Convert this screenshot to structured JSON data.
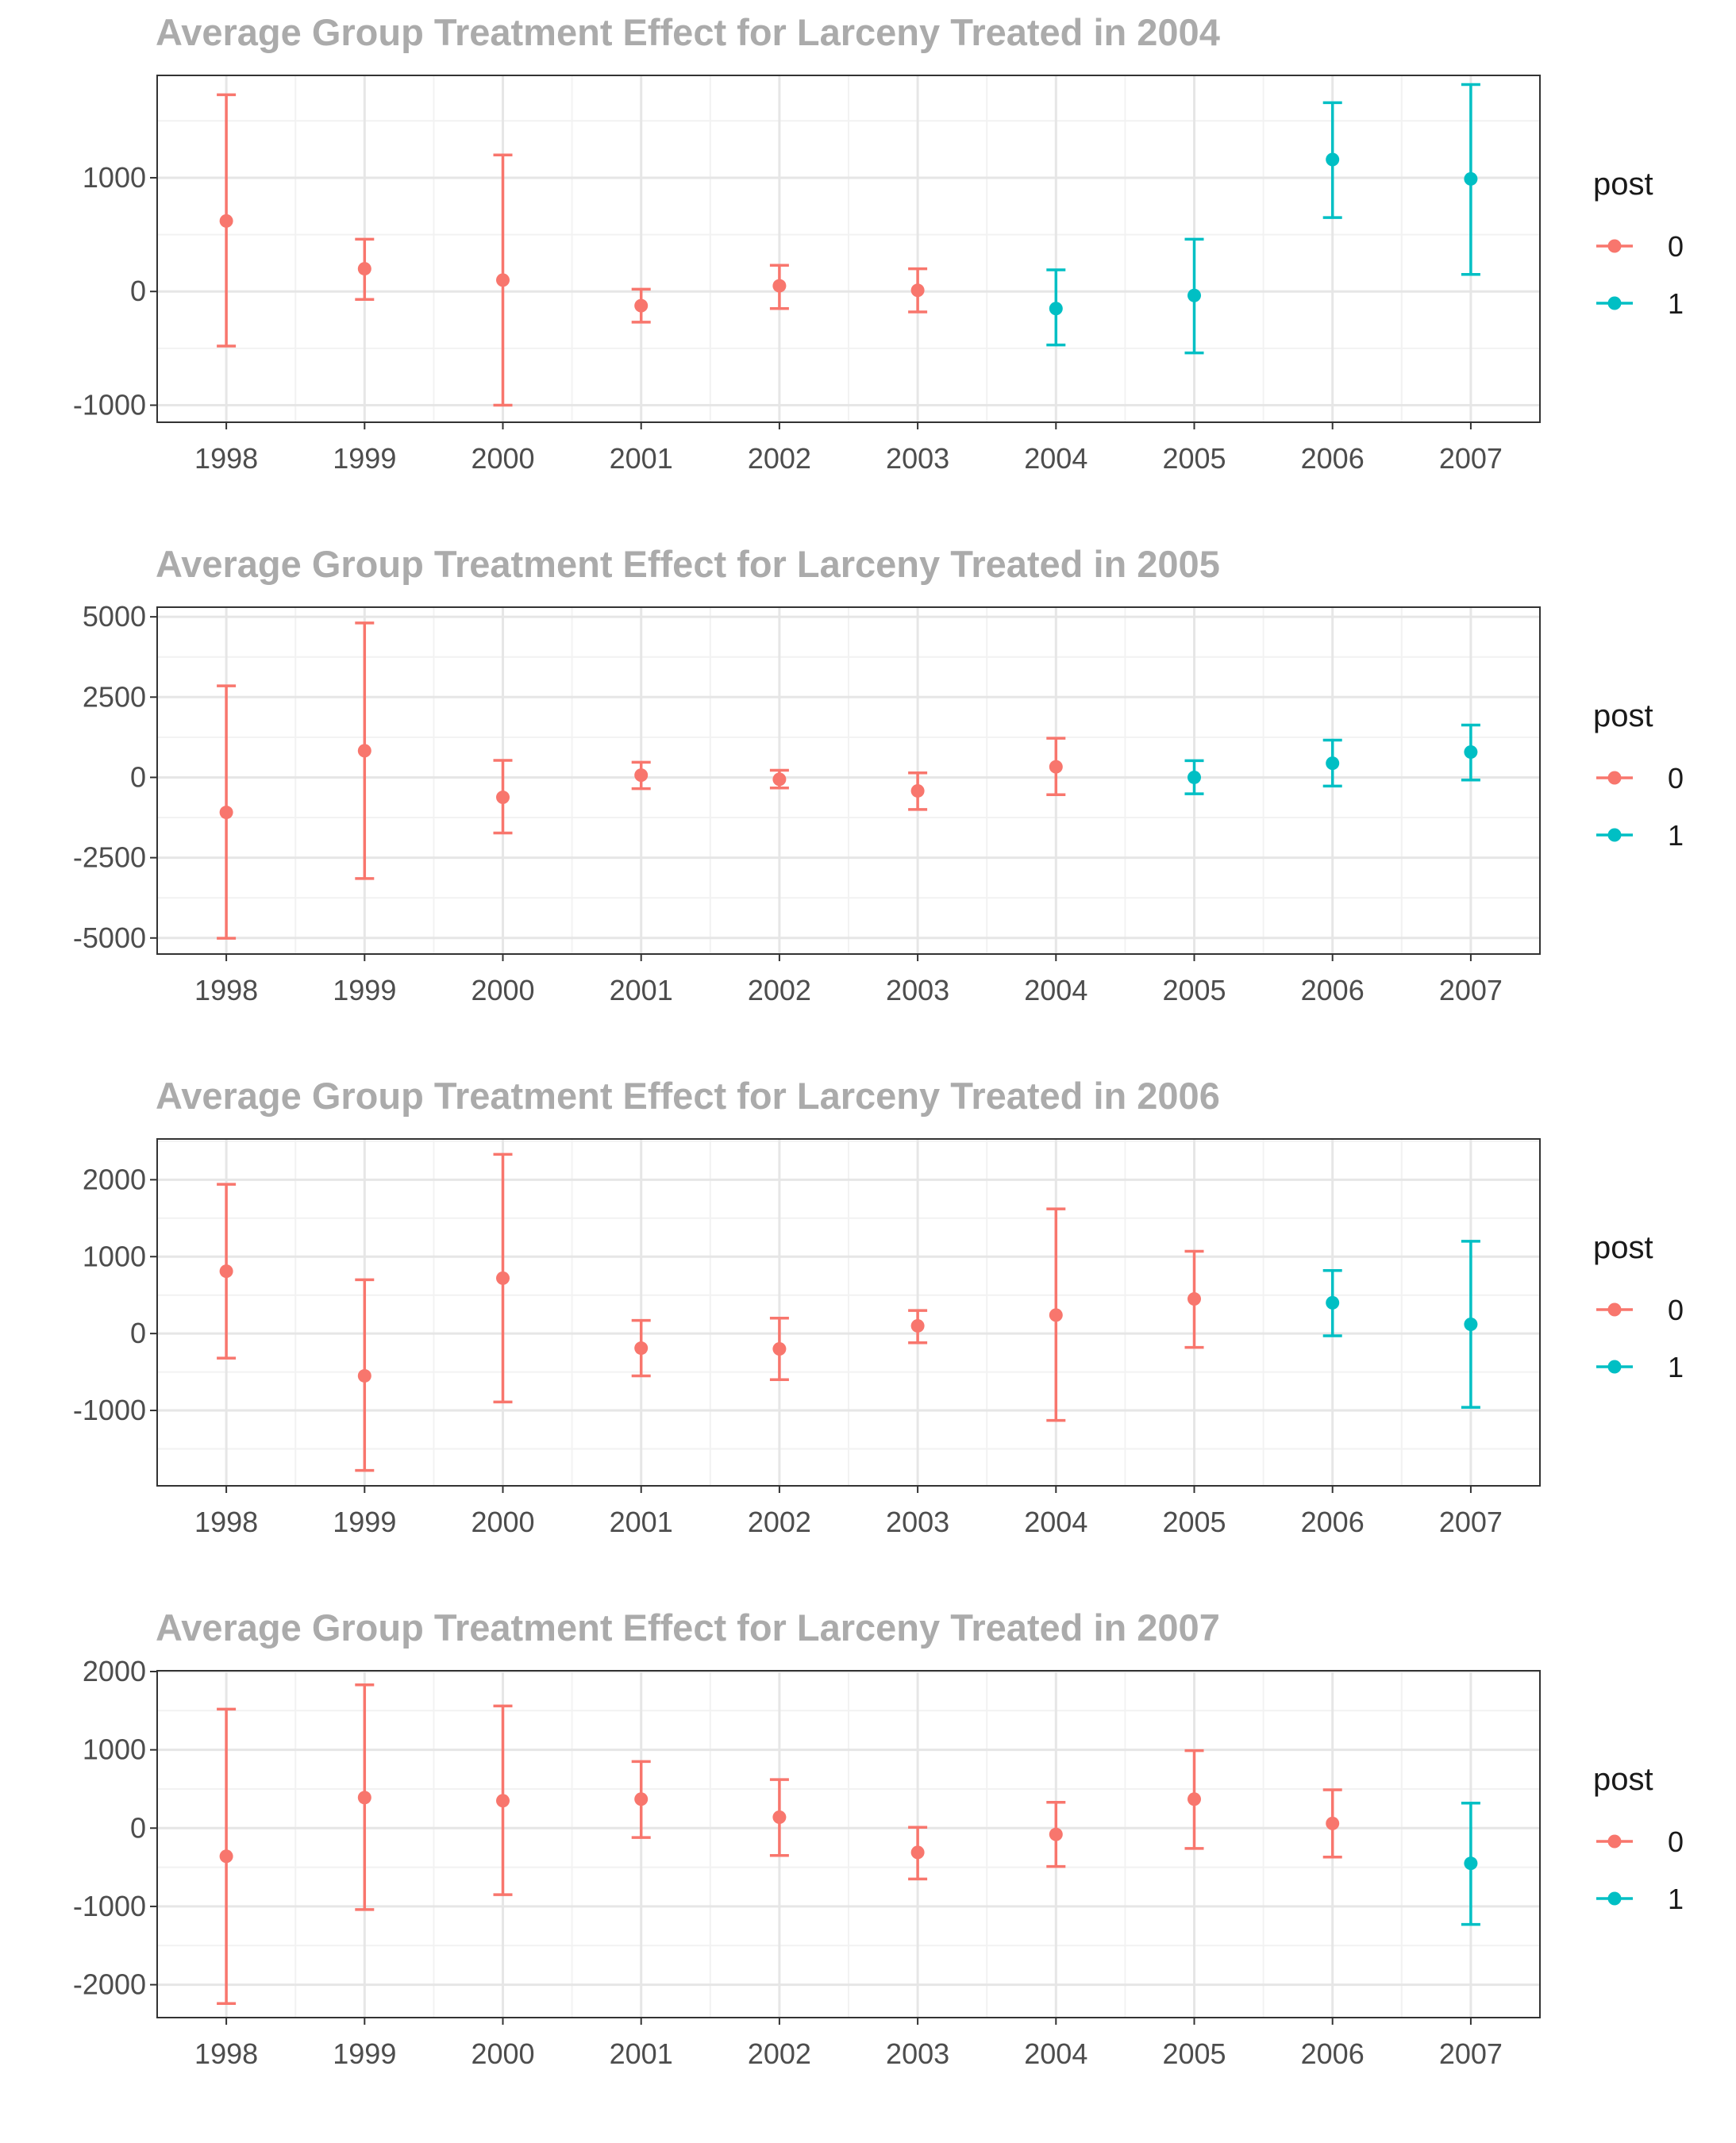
{
  "colors": {
    "pre": "#F8766D",
    "post": "#00BFC4",
    "grid_major": "#e6e6e6",
    "grid_minor": "#f2f2f2",
    "border": "#333333"
  },
  "legend": {
    "title": "post",
    "items": [
      {
        "label": "0",
        "color": "#F8766D"
      },
      {
        "label": "1",
        "color": "#00BFC4"
      }
    ]
  },
  "chart_data": [
    {
      "type": "errorbar",
      "title": "Average Group Treatment Effect for Larceny Treated in 2004",
      "x": [
        1998,
        1999,
        2000,
        2001,
        2002,
        2003,
        2004,
        2005,
        2006,
        2007
      ],
      "post": [
        0,
        0,
        0,
        0,
        0,
        0,
        1,
        1,
        1,
        1
      ],
      "y": [
        620,
        200,
        100,
        -125,
        50,
        10,
        -150,
        -35,
        1160,
        990
      ],
      "ymin": [
        -480,
        -70,
        -1000,
        -270,
        -150,
        -180,
        -470,
        -540,
        650,
        150
      ],
      "ymax": [
        1730,
        460,
        1200,
        20,
        230,
        200,
        190,
        460,
        1660,
        1820
      ],
      "ylim": [
        -1150,
        1900
      ],
      "yticks": [
        -1000,
        0,
        1000
      ],
      "ytick_labels": [
        "-1000",
        "0",
        "1000"
      ],
      "legend_position": "right"
    },
    {
      "type": "errorbar",
      "title": "Average Group Treatment Effect for Larceny Treated in 2005",
      "x": [
        1998,
        1999,
        2000,
        2001,
        2002,
        2003,
        2004,
        2005,
        2006,
        2007
      ],
      "post": [
        0,
        0,
        0,
        0,
        0,
        0,
        0,
        1,
        1,
        1
      ],
      "y": [
        -1090,
        830,
        -620,
        70,
        -60,
        -420,
        330,
        0,
        440,
        790
      ],
      "ymin": [
        -5010,
        -3150,
        -1730,
        -350,
        -330,
        -1000,
        -540,
        -510,
        -270,
        -80
      ],
      "ymax": [
        2850,
        4810,
        530,
        470,
        220,
        140,
        1220,
        520,
        1160,
        1630
      ],
      "ylim": [
        -5500,
        5300
      ],
      "yticks": [
        -5000,
        -2500,
        0,
        2500,
        5000
      ],
      "ytick_labels": [
        "-5000",
        "-2500",
        "0",
        "2500",
        "5000"
      ],
      "legend_position": "right"
    },
    {
      "type": "errorbar",
      "title": "Average Group Treatment Effect for Larceny Treated in 2006",
      "x": [
        1998,
        1999,
        2000,
        2001,
        2002,
        2003,
        2004,
        2005,
        2006,
        2007
      ],
      "post": [
        0,
        0,
        0,
        0,
        0,
        0,
        0,
        0,
        1,
        1
      ],
      "y": [
        810,
        -550,
        720,
        -190,
        -200,
        100,
        240,
        450,
        400,
        120
      ],
      "ymin": [
        -320,
        -1780,
        -890,
        -550,
        -600,
        -120,
        -1130,
        -180,
        -30,
        -960
      ],
      "ymax": [
        1940,
        700,
        2330,
        170,
        200,
        300,
        1620,
        1070,
        820,
        1200
      ],
      "ylim": [
        -1980,
        2530
      ],
      "yticks": [
        -1000,
        0,
        1000,
        2000
      ],
      "ytick_labels": [
        "-1000",
        "0",
        "1000",
        "2000"
      ],
      "legend_position": "right"
    },
    {
      "type": "errorbar",
      "title": "Average Group Treatment Effect for Larceny Treated in 2007",
      "x": [
        1998,
        1999,
        2000,
        2001,
        2002,
        2003,
        2004,
        2005,
        2006,
        2007
      ],
      "post": [
        0,
        0,
        0,
        0,
        0,
        0,
        0,
        0,
        0,
        1
      ],
      "y": [
        -360,
        390,
        350,
        370,
        140,
        -310,
        -80,
        370,
        60,
        -450
      ],
      "ymin": [
        -2240,
        -1040,
        -850,
        -120,
        -350,
        -650,
        -490,
        -260,
        -370,
        -1230
      ],
      "ymax": [
        1520,
        1830,
        1560,
        850,
        620,
        10,
        330,
        990,
        490,
        320
      ],
      "ylim": [
        -2420,
        2010
      ],
      "yticks": [
        -2000,
        -1000,
        0,
        1000,
        2000
      ],
      "ytick_labels": [
        "-2000",
        "-1000",
        "0",
        "1000",
        "2000"
      ],
      "legend_position": "right"
    }
  ]
}
